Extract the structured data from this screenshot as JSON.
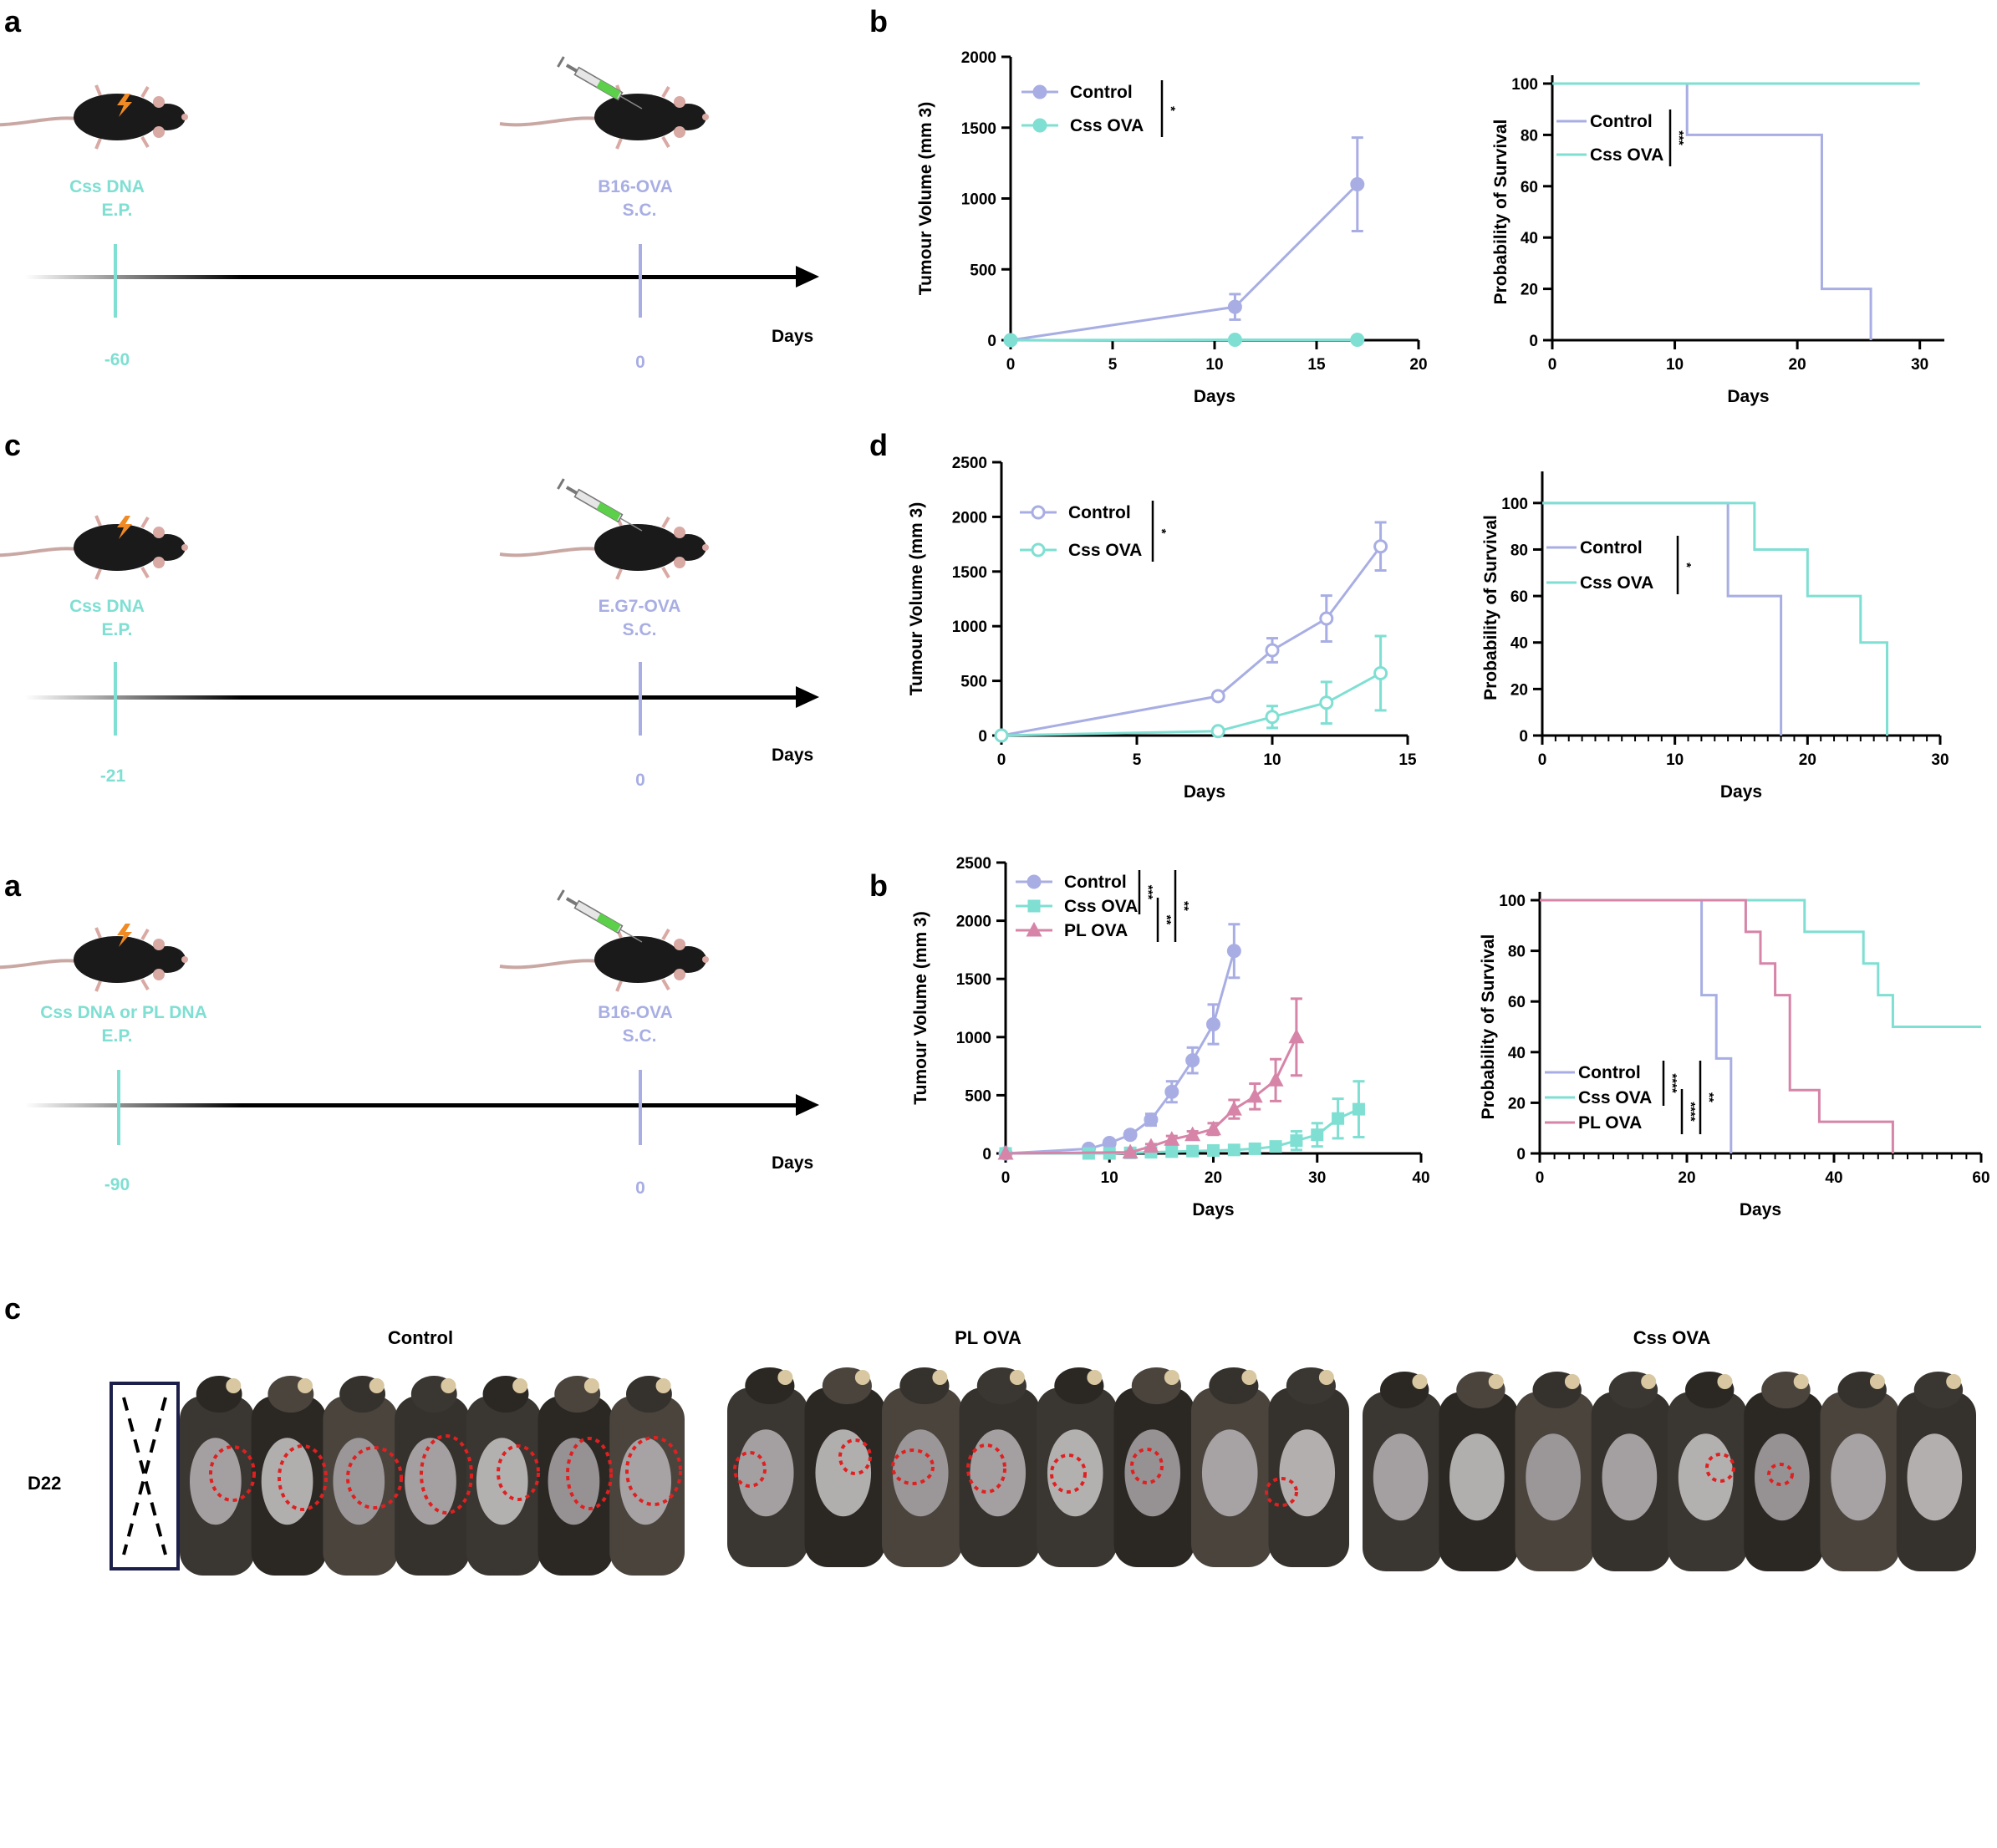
{
  "colors": {
    "control": "#A8AEE3",
    "css": "#7EDFD2",
    "pl": "#D684A8",
    "timeline_css": "#7EDFD2",
    "timeline_tumour": "#A8AEE3",
    "circle": "#E02020"
  },
  "panel_labels": {
    "a1": "a",
    "b1": "b",
    "c1": "c",
    "d": "d",
    "a2": "a",
    "b2": "b",
    "c2": "c"
  },
  "timelines": [
    {
      "left_label": [
        "Css DNA",
        "E.P."
      ],
      "right_label": [
        "B16-OVA",
        "S.C."
      ],
      "left_day": "-60",
      "right_day": "0",
      "axis_label": "Days"
    },
    {
      "left_label": [
        "Css DNA",
        "E.P."
      ],
      "right_label": [
        "E.G7-OVA",
        "S.C."
      ],
      "left_day": "-21",
      "right_day": "0",
      "axis_label": "Days"
    },
    {
      "left_label": [
        "Css DNA or PL DNA",
        "E.P."
      ],
      "right_label": [
        "B16-OVA",
        "S.C."
      ],
      "left_day": "-90",
      "right_day": "0",
      "axis_label": "Days"
    }
  ],
  "chart_data": [
    {
      "id": "b1-volume",
      "type": "line",
      "xlabel": "Days",
      "ylabel": "Tumour Volume (mm 3)",
      "xlim": [
        0,
        20
      ],
      "ylim": [
        0,
        2000
      ],
      "xticks": [
        0,
        5,
        10,
        15,
        20
      ],
      "yticks": [
        0,
        500,
        1000,
        1500,
        2000
      ],
      "marker_fill": true,
      "series": [
        {
          "name": "Control",
          "color": "#A8AEE3",
          "marker": "circle",
          "x": [
            0,
            11,
            17
          ],
          "y": [
            0,
            235,
            1100
          ],
          "err": [
            0,
            90,
            330
          ]
        },
        {
          "name": "Css OVA",
          "color": "#7EDFD2",
          "marker": "circle",
          "x": [
            0,
            11,
            17
          ],
          "y": [
            0,
            3,
            3
          ],
          "err": [
            0,
            3,
            3
          ]
        }
      ],
      "significance": [
        "*"
      ]
    },
    {
      "id": "b1-survival",
      "type": "line",
      "subtype": "survival",
      "xlabel": "Days",
      "ylabel": "Probability of Survival",
      "xlim": [
        0,
        32
      ],
      "ylim": [
        0,
        100
      ],
      "xticks": [
        0,
        10,
        20,
        30
      ],
      "yticks": [
        0,
        20,
        40,
        60,
        80,
        100
      ],
      "minor_xticks": false,
      "series": [
        {
          "name": "Control",
          "color": "#A8AEE3",
          "x": [
            0,
            11,
            11,
            22,
            22,
            26,
            26
          ],
          "y": [
            100,
            100,
            80,
            80,
            20,
            20,
            0
          ]
        },
        {
          "name": "Css OVA",
          "color": "#7EDFD2",
          "x": [
            0,
            30
          ],
          "y": [
            100,
            100
          ]
        }
      ],
      "significance": [
        "***"
      ]
    },
    {
      "id": "d-volume",
      "type": "line",
      "xlabel": "Days",
      "ylabel": "Tumour Volume (mm 3)",
      "xlim": [
        0,
        15
      ],
      "ylim": [
        0,
        2500
      ],
      "xticks": [
        0,
        5,
        10,
        15
      ],
      "yticks": [
        0,
        500,
        1000,
        1500,
        2000,
        2500
      ],
      "marker_fill": false,
      "series": [
        {
          "name": "Control",
          "color": "#A8AEE3",
          "marker": "circle",
          "x": [
            0,
            8,
            10,
            12,
            14
          ],
          "y": [
            0,
            360,
            780,
            1070,
            1730
          ],
          "err": [
            0,
            30,
            110,
            210,
            220
          ]
        },
        {
          "name": "Css OVA",
          "color": "#7EDFD2",
          "marker": "circle",
          "x": [
            0,
            8,
            10,
            12,
            14
          ],
          "y": [
            0,
            40,
            170,
            300,
            570
          ],
          "err": [
            0,
            20,
            100,
            190,
            340
          ]
        }
      ],
      "significance": [
        "*"
      ]
    },
    {
      "id": "d-survival",
      "type": "line",
      "subtype": "survival",
      "xlabel": "Days",
      "ylabel": "Probability of Survival",
      "xlim": [
        0,
        30
      ],
      "ylim": [
        0,
        110
      ],
      "xticks": [
        0,
        10,
        20,
        30
      ],
      "yticks": [
        0,
        20,
        40,
        60,
        80,
        100
      ],
      "minor_xticks": true,
      "series": [
        {
          "name": "Control",
          "color": "#A8AEE3",
          "x": [
            0,
            14,
            14,
            18,
            18
          ],
          "y": [
            100,
            100,
            60,
            60,
            0
          ]
        },
        {
          "name": "Css OVA",
          "color": "#7EDFD2",
          "x": [
            0,
            16,
            16,
            20,
            20,
            24,
            24,
            26,
            26
          ],
          "y": [
            100,
            100,
            80,
            80,
            60,
            60,
            40,
            40,
            0
          ]
        }
      ],
      "significance": [
        "*"
      ]
    },
    {
      "id": "b2-volume",
      "type": "line",
      "xlabel": "Days",
      "ylabel": "Tumour Volume (mm 3)",
      "xlim": [
        0,
        40
      ],
      "ylim": [
        0,
        2500
      ],
      "xticks": [
        0,
        10,
        20,
        30,
        40
      ],
      "yticks": [
        0,
        500,
        1000,
        1500,
        2000,
        2500
      ],
      "marker_fill": true,
      "series": [
        {
          "name": "Control",
          "color": "#A8AEE3",
          "marker": "circle",
          "x": [
            0,
            8,
            10,
            12,
            14,
            16,
            18,
            20,
            22
          ],
          "y": [
            0,
            40,
            90,
            160,
            290,
            530,
            800,
            1110,
            1740
          ],
          "err": [
            0,
            10,
            20,
            30,
            50,
            90,
            110,
            170,
            230
          ]
        },
        {
          "name": "Css OVA",
          "color": "#7EDFD2",
          "marker": "square",
          "x": [
            0,
            8,
            10,
            12,
            14,
            16,
            18,
            20,
            22,
            24,
            26,
            28,
            30,
            32,
            34
          ],
          "y": [
            0,
            0,
            0,
            5,
            10,
            15,
            20,
            25,
            30,
            40,
            60,
            110,
            160,
            300,
            380
          ],
          "err": [
            0,
            0,
            0,
            5,
            5,
            5,
            10,
            10,
            15,
            20,
            30,
            80,
            100,
            170,
            240
          ]
        },
        {
          "name": "PL OVA",
          "color": "#D684A8",
          "marker": "triangle",
          "x": [
            0,
            12,
            14,
            16,
            18,
            20,
            22,
            24,
            26,
            28
          ],
          "y": [
            0,
            10,
            60,
            120,
            160,
            210,
            380,
            490,
            630,
            1000
          ],
          "err": [
            0,
            5,
            20,
            30,
            30,
            50,
            80,
            110,
            180,
            330
          ]
        }
      ],
      "significance": [
        "***",
        "**",
        "**"
      ]
    },
    {
      "id": "b2-survival",
      "type": "line",
      "subtype": "survival",
      "xlabel": "Days",
      "ylabel": "Probability of Survival",
      "xlim": [
        0,
        60
      ],
      "ylim": [
        0,
        100
      ],
      "xticks": [
        0,
        20,
        40,
        60
      ],
      "yticks": [
        0,
        20,
        40,
        60,
        80,
        100
      ],
      "minor_xticks": true,
      "series": [
        {
          "name": "Control",
          "color": "#A8AEE3",
          "x": [
            0,
            22,
            22,
            24,
            24,
            26,
            26
          ],
          "y": [
            100,
            100,
            62.5,
            62.5,
            37.5,
            37.5,
            0
          ]
        },
        {
          "name": "Css OVA",
          "color": "#7EDFD2",
          "x": [
            0,
            36,
            36,
            44,
            44,
            46,
            46,
            48,
            48,
            60
          ],
          "y": [
            100,
            100,
            87.5,
            87.5,
            75,
            75,
            62.5,
            62.5,
            50,
            50
          ]
        },
        {
          "name": "PL OVA",
          "color": "#D684A8",
          "x": [
            0,
            28,
            28,
            30,
            30,
            32,
            32,
            34,
            34,
            38,
            38,
            48,
            48
          ],
          "y": [
            100,
            100,
            87.5,
            87.5,
            75,
            75,
            62.5,
            62.5,
            25,
            25,
            12.5,
            12.5,
            0
          ]
        }
      ],
      "significance": [
        "****",
        "****",
        "**"
      ]
    }
  ],
  "photo_panel": {
    "row_label": "D22",
    "groups": [
      {
        "name": "Control",
        "mice": 7,
        "circles": 7
      },
      {
        "name": "PL OVA",
        "mice": 8,
        "circles": 7
      },
      {
        "name": "Css OVA",
        "mice": 8,
        "circles": 2
      }
    ]
  }
}
